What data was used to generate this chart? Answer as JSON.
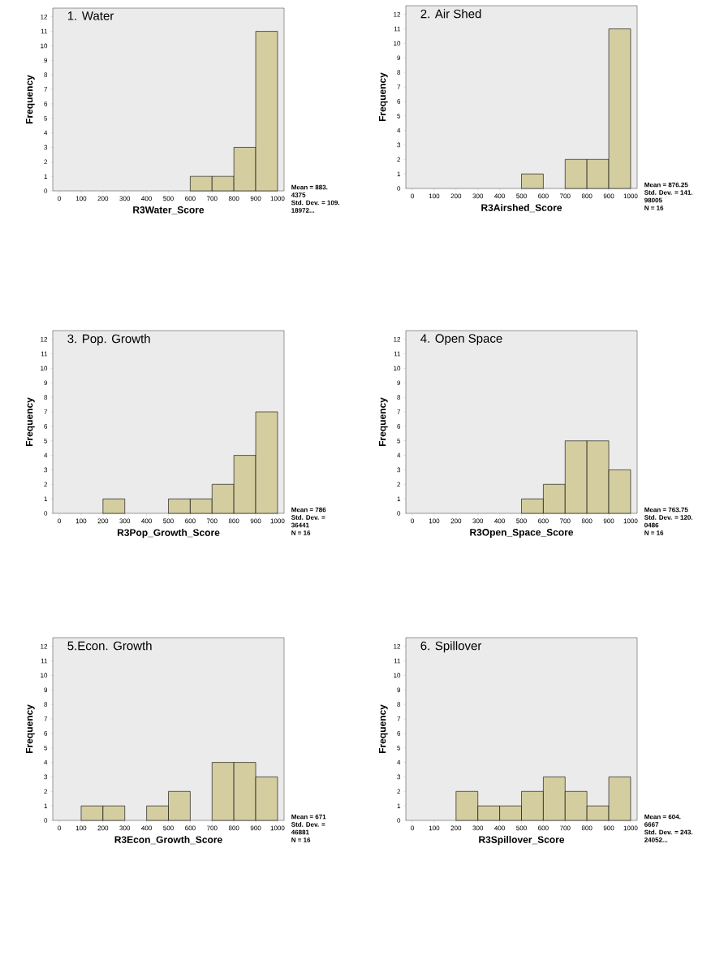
{
  "chart_data": [
    {
      "type": "histogram",
      "title": "1. Water",
      "xlabel": "R3Water_Score",
      "ylabel": "Frequency",
      "color": "#d4cda0",
      "bins": [
        0,
        100,
        200,
        300,
        400,
        500,
        600,
        700,
        800,
        900,
        1000
      ],
      "values": [
        0,
        0,
        0,
        0,
        0,
        0,
        1,
        1,
        3,
        11
      ],
      "xlim": [
        -30,
        1030
      ],
      "ylim": [
        0,
        12.6
      ],
      "xticks": [
        0,
        100,
        200,
        300,
        400,
        500,
        600,
        700,
        800,
        900,
        1000
      ],
      "yticks": [
        0,
        1,
        2,
        3,
        4,
        5,
        6,
        7,
        8,
        9,
        10,
        11,
        12
      ],
      "annotations": [
        "Mean = 883.",
        "4375",
        "Std. Dev. = 109.",
        "18972..."
      ]
    },
    {
      "type": "histogram",
      "title": "2.  Air Shed",
      "xlabel": "R3Airshed_Score",
      "ylabel": "Frequency",
      "color": "#d4cda0",
      "bins": [
        0,
        100,
        200,
        300,
        400,
        500,
        600,
        700,
        800,
        900,
        1000
      ],
      "values": [
        0,
        0,
        0,
        0,
        0,
        1,
        0,
        2,
        2,
        11
      ],
      "xlim": [
        -30,
        1030
      ],
      "ylim": [
        0,
        12.6
      ],
      "xticks": [
        0,
        100,
        200,
        300,
        400,
        500,
        600,
        700,
        800,
        900,
        1000
      ],
      "yticks": [
        0,
        1,
        2,
        3,
        4,
        5,
        6,
        7,
        8,
        9,
        10,
        11,
        12
      ],
      "annotations": [
        "Mean = 876.25",
        "Std. Dev. = 141.",
        "98005",
        "N = 16"
      ]
    },
    {
      "type": "histogram",
      "title": "3. Pop. Growth",
      "xlabel": "R3Pop_Growth_Score",
      "ylabel": "Frequency",
      "color": "#d4cda0",
      "bins": [
        0,
        100,
        200,
        300,
        400,
        500,
        600,
        700,
        800,
        900,
        1000
      ],
      "values": [
        0,
        0,
        1,
        0,
        0,
        1,
        1,
        2,
        4,
        7
      ],
      "xlim": [
        -30,
        1030
      ],
      "ylim": [
        0,
        12.6
      ],
      "xticks": [
        0,
        100,
        200,
        300,
        400,
        500,
        600,
        700,
        800,
        900,
        1000
      ],
      "yticks": [
        0,
        1,
        2,
        3,
        4,
        5,
        6,
        7,
        8,
        9,
        10,
        11,
        12
      ],
      "annotations": [
        "Mean = 786",
        "Std. Dev. =",
        "36441",
        "N = 16"
      ]
    },
    {
      "type": "histogram",
      "title": "4. Open Space",
      "xlabel": "R3Open_Space_Score",
      "ylabel": "Frequency",
      "color": "#d4cda0",
      "bins": [
        0,
        100,
        200,
        300,
        400,
        500,
        600,
        700,
        800,
        900,
        1000
      ],
      "values": [
        0,
        0,
        0,
        0,
        0,
        1,
        2,
        5,
        5,
        3
      ],
      "xlim": [
        -30,
        1030
      ],
      "ylim": [
        0,
        12.6
      ],
      "xticks": [
        0,
        100,
        200,
        300,
        400,
        500,
        600,
        700,
        800,
        900,
        1000
      ],
      "yticks": [
        0,
        1,
        2,
        3,
        4,
        5,
        6,
        7,
        8,
        9,
        10,
        11,
        12
      ],
      "annotations": [
        "Mean = 763.75",
        "Std. Dev. = 120.",
        "0486",
        "N = 16"
      ]
    },
    {
      "type": "histogram",
      "title": "5.Econ. Growth",
      "xlabel": "R3Econ_Growth_Score",
      "ylabel": "Frequency",
      "color": "#d4cda0",
      "bins": [
        0,
        100,
        200,
        300,
        400,
        500,
        600,
        700,
        800,
        900,
        1000
      ],
      "values": [
        0,
        1,
        1,
        0,
        1,
        2,
        0,
        4,
        4,
        3
      ],
      "xlim": [
        -30,
        1030
      ],
      "ylim": [
        0,
        12.6
      ],
      "xticks": [
        0,
        100,
        200,
        300,
        400,
        500,
        600,
        700,
        800,
        900,
        1000
      ],
      "yticks": [
        0,
        1,
        2,
        3,
        4,
        5,
        6,
        7,
        8,
        9,
        10,
        11,
        12
      ],
      "annotations": [
        "Mean = 671",
        "Std. Dev. =",
        "46881",
        "N = 16"
      ]
    },
    {
      "type": "histogram",
      "title": "6. Spillover",
      "xlabel": "R3Spillover_Score",
      "ylabel": "Frequency",
      "color": "#d4cda0",
      "bins": [
        0,
        100,
        200,
        300,
        400,
        500,
        600,
        700,
        800,
        900,
        1000
      ],
      "values": [
        0,
        0,
        2,
        1,
        1,
        2,
        3,
        2,
        1,
        3
      ],
      "xlim": [
        -30,
        1030
      ],
      "ylim": [
        0,
        12.6
      ],
      "xticks": [
        0,
        100,
        200,
        300,
        400,
        500,
        600,
        700,
        800,
        900,
        1000
      ],
      "yticks": [
        0,
        1,
        2,
        3,
        4,
        5,
        6,
        7,
        8,
        9,
        10,
        11,
        12
      ],
      "annotations": [
        "Mean = 604.",
        "6667",
        "Std. Dev. = 243.",
        "24052..."
      ]
    }
  ]
}
